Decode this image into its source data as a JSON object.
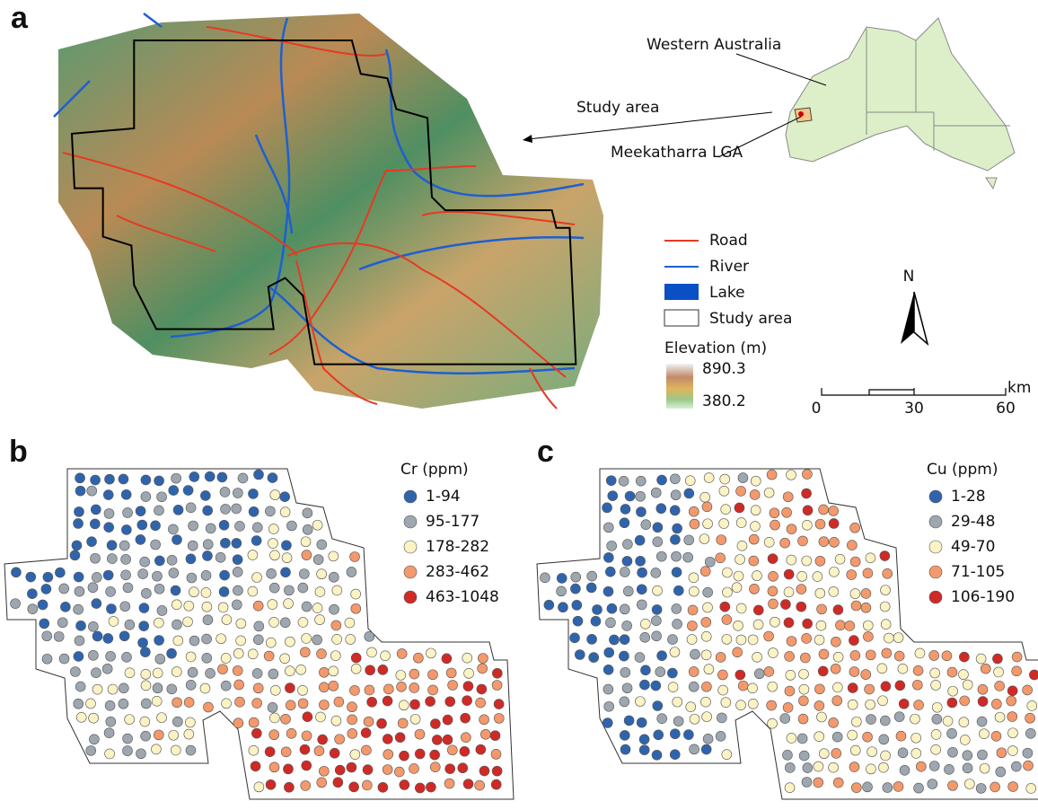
{
  "panels": {
    "a": {
      "label": "a",
      "annotations": {
        "western_australia": "Western Australia",
        "study_area": "Study area",
        "lga": "Meekatharra LGA"
      },
      "legend": {
        "items": [
          "Road",
          "River",
          "Lake",
          "Study area"
        ],
        "elevation": {
          "title": "Elevation (m)",
          "max": 890.3,
          "min": 380.2
        }
      },
      "north": "N",
      "scale": {
        "unit": "km",
        "ticks": [
          0,
          30,
          60
        ]
      }
    },
    "b": {
      "label": "b",
      "legend": {
        "title": "Cr (ppm)",
        "classes": [
          {
            "label": "1-94",
            "color": "#2f64ad"
          },
          {
            "label": "95-177",
            "color": "#9ea7b0"
          },
          {
            "label": "178-282",
            "color": "#fbf3c4"
          },
          {
            "label": "283-462",
            "color": "#f3996c"
          },
          {
            "label": "463-1048",
            "color": "#cf2a26"
          }
        ]
      }
    },
    "c": {
      "label": "c",
      "legend": {
        "title": "Cu (ppm)",
        "classes": [
          {
            "label": "1-28",
            "color": "#2f64ad"
          },
          {
            "label": "29-48",
            "color": "#9ea7b0"
          },
          {
            "label": "49-70",
            "color": "#fbf3c4"
          },
          {
            "label": "71-105",
            "color": "#f3996c"
          },
          {
            "label": "106-190",
            "color": "#cf2a26"
          }
        ]
      }
    }
  }
}
